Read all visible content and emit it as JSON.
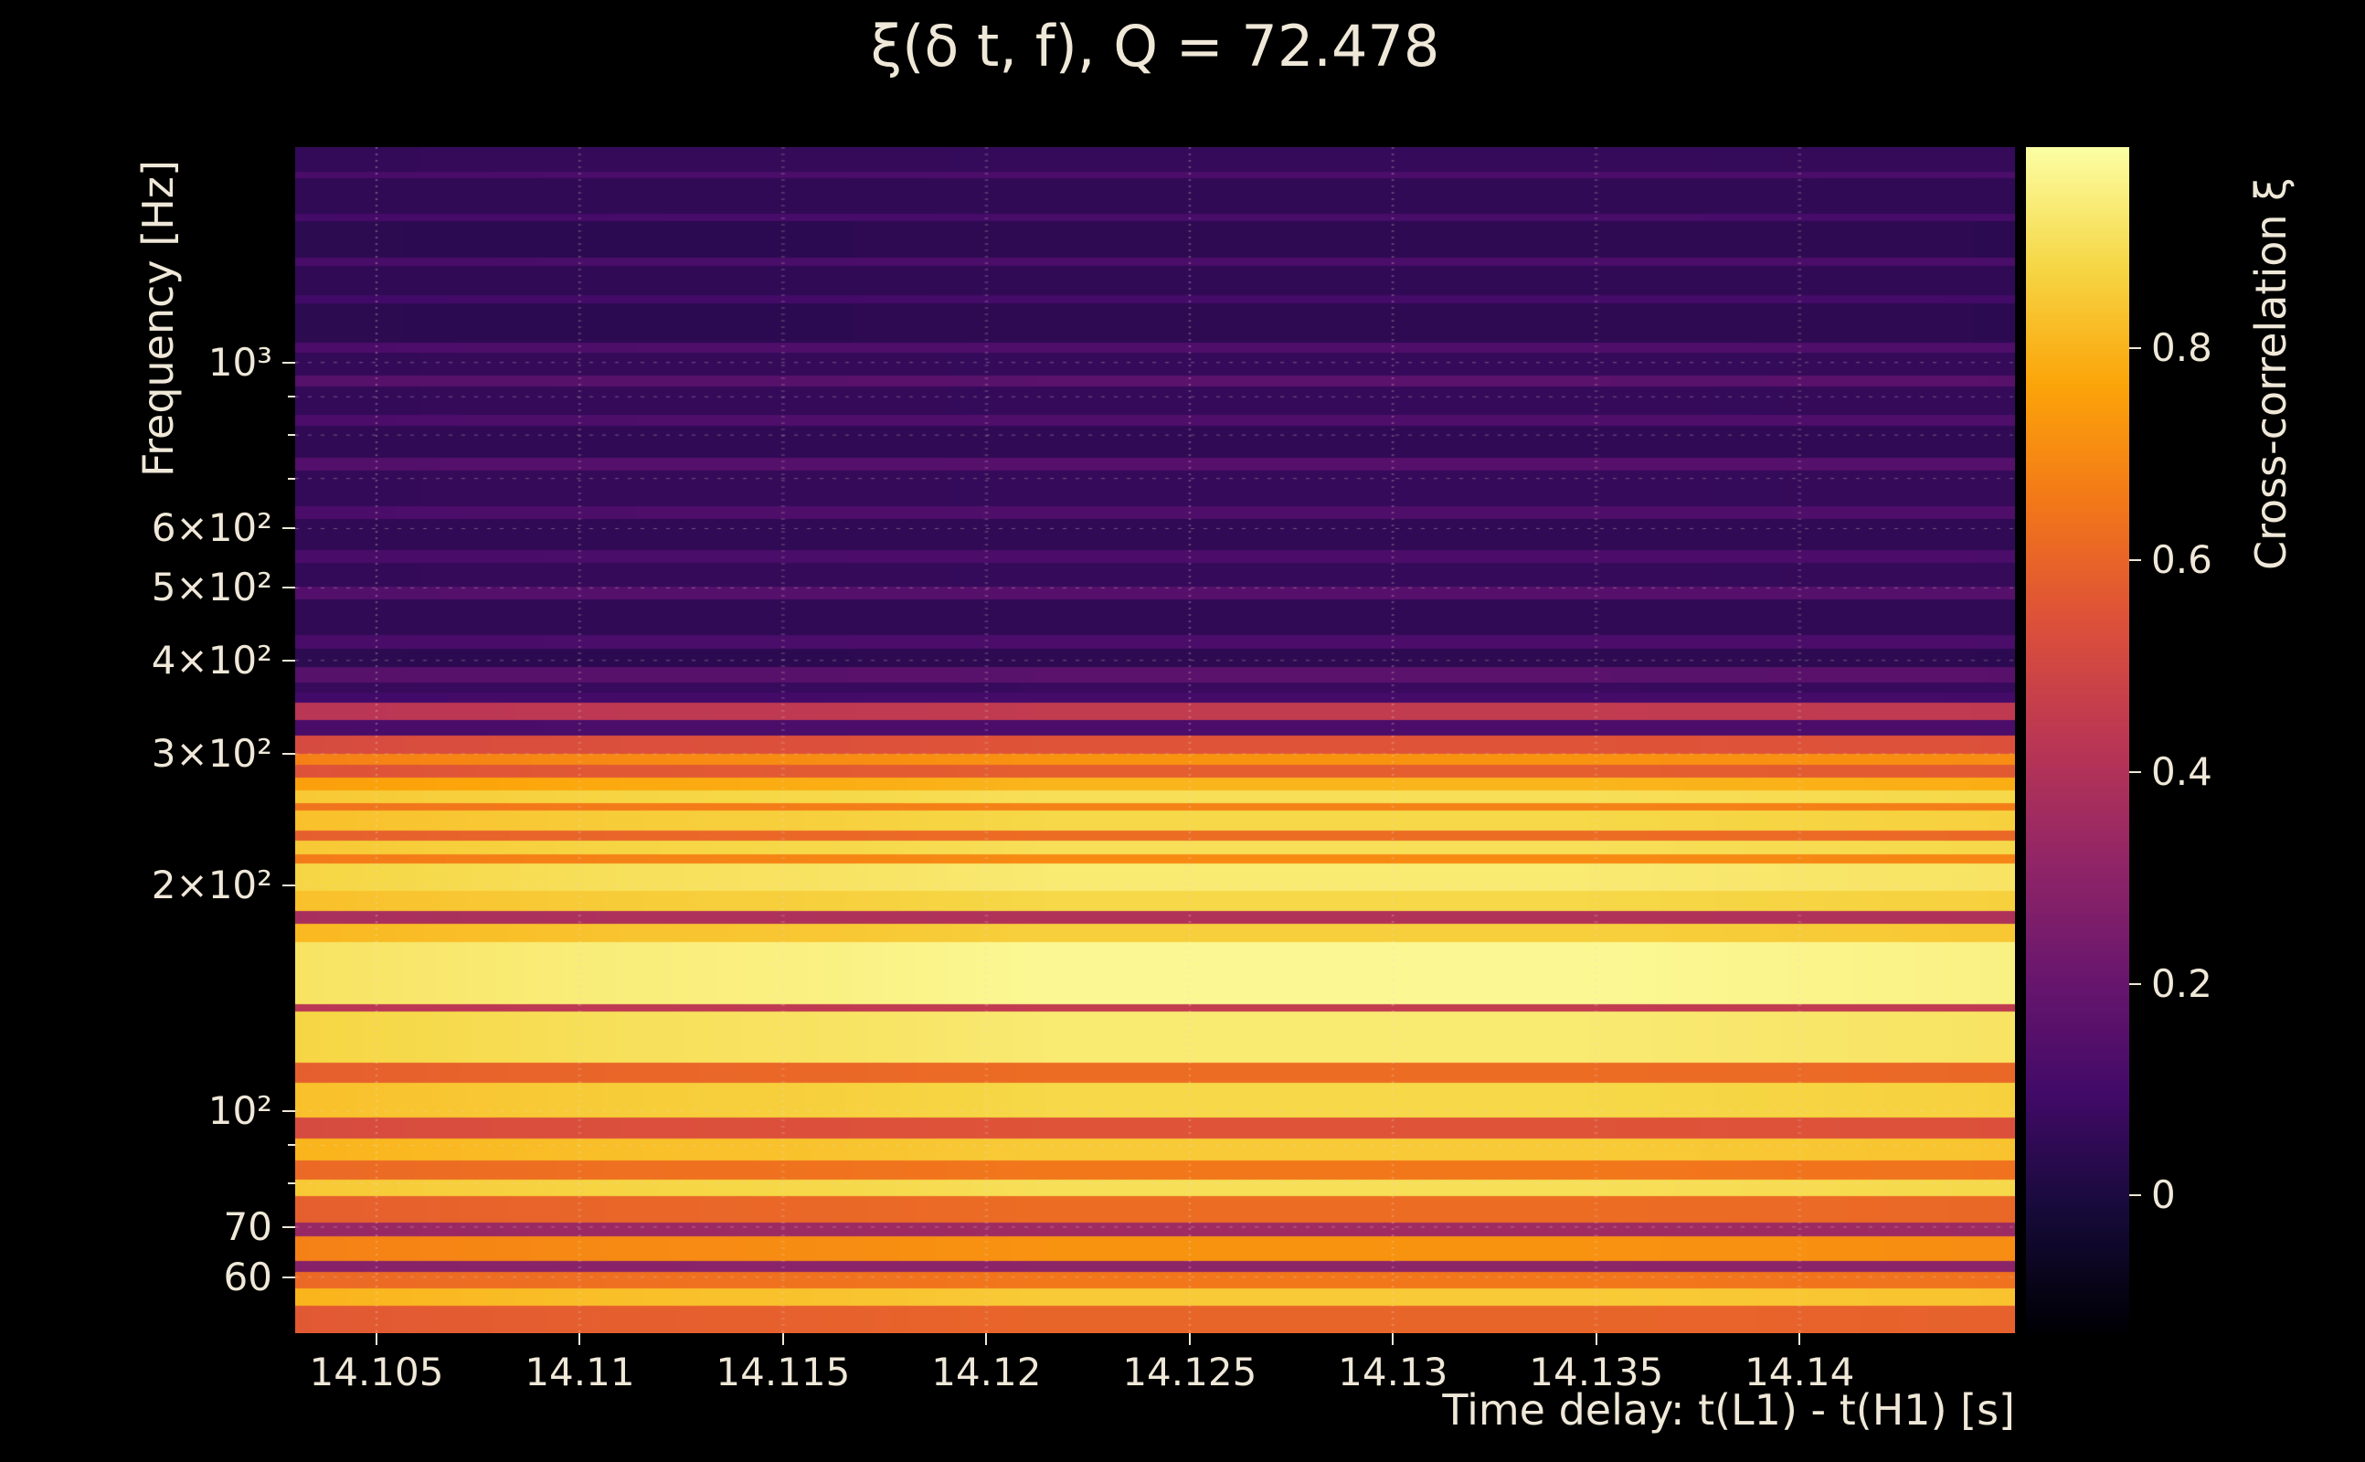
{
  "figure": {
    "background_color": "#000000",
    "text_color": "#efe8d8"
  },
  "chart_data": {
    "type": "heatmap",
    "title": "ξ(δ t, f), Q = 72.478",
    "q": 72.478,
    "xlabel": "Time delay: t(L1) - t(H1) [s]",
    "ylabel": "Frequency [Hz]",
    "colorbar_label": "Cross-correlation ξ",
    "colormap": "inferno",
    "x_range": [
      14.103,
      14.1453
    ],
    "x_ticks": [
      {
        "value": 14.105,
        "label": "14.105"
      },
      {
        "value": 14.11,
        "label": "14.11"
      },
      {
        "value": 14.115,
        "label": "14.115"
      },
      {
        "value": 14.12,
        "label": "14.12"
      },
      {
        "value": 14.125,
        "label": "14.125"
      },
      {
        "value": 14.13,
        "label": "14.13"
      },
      {
        "value": 14.135,
        "label": "14.135"
      },
      {
        "value": 14.14,
        "label": "14.14"
      }
    ],
    "y_scale": "log",
    "y_range_hz": [
      50.5,
      1940
    ],
    "y_ticks": [
      {
        "value": 1000,
        "label": "10³"
      },
      {
        "value": 900,
        "label": ""
      },
      {
        "value": 800,
        "label": ""
      },
      {
        "value": 700,
        "label": ""
      },
      {
        "value": 600,
        "label": "6×10²"
      },
      {
        "value": 500,
        "label": "5×10²"
      },
      {
        "value": 400,
        "label": "4×10²"
      },
      {
        "value": 300,
        "label": "3×10²"
      },
      {
        "value": 200,
        "label": "2×10²"
      },
      {
        "value": 100,
        "label": "10²"
      },
      {
        "value": 90,
        "label": ""
      },
      {
        "value": 80,
        "label": ""
      },
      {
        "value": 70,
        "label": "70"
      },
      {
        "value": 60,
        "label": "60"
      }
    ],
    "colorbar_range": [
      -0.13,
      0.99
    ],
    "colorbar_ticks": [
      {
        "value": 0.8,
        "label": "0.8"
      },
      {
        "value": 0.6,
        "label": "0.6"
      },
      {
        "value": 0.4,
        "label": "0.4"
      },
      {
        "value": 0.2,
        "label": "0.2"
      },
      {
        "value": 0.0,
        "label": "0"
      }
    ],
    "grid": {
      "show": true,
      "style": "dotted",
      "color": "#e8e0d0",
      "alpha": 0.38
    },
    "grid_freqs_hz": [
      1000,
      900,
      800,
      700,
      600,
      500,
      400,
      300,
      200,
      100,
      90,
      80,
      70,
      60
    ],
    "bands_hz_xi": [
      [
        1940,
        1800,
        0.06
      ],
      [
        1800,
        1762,
        0.12
      ],
      [
        1762,
        1580,
        0.05
      ],
      [
        1580,
        1543,
        0.11
      ],
      [
        1543,
        1382,
        0.04
      ],
      [
        1382,
        1348,
        0.12
      ],
      [
        1348,
        1232,
        0.05
      ],
      [
        1232,
        1200,
        0.1
      ],
      [
        1200,
        1062,
        0.04
      ],
      [
        1062,
        1030,
        0.13
      ],
      [
        1030,
        962,
        0.06
      ],
      [
        962,
        928,
        0.16
      ],
      [
        928,
        852,
        0.06
      ],
      [
        852,
        822,
        0.13
      ],
      [
        822,
        745,
        0.05
      ],
      [
        745,
        718,
        0.15
      ],
      [
        718,
        642,
        0.06
      ],
      [
        642,
        618,
        0.13
      ],
      [
        618,
        562,
        0.05
      ],
      [
        562,
        540,
        0.12
      ],
      [
        540,
        502,
        0.06
      ],
      [
        502,
        482,
        0.15
      ],
      [
        482,
        432,
        0.05
      ],
      [
        432,
        415,
        0.12
      ],
      [
        415,
        392,
        0.04
      ],
      [
        392,
        374,
        0.16
      ],
      [
        374,
        362,
        0.07
      ],
      [
        362,
        351,
        0.1
      ],
      [
        351,
        333,
        0.45
      ],
      [
        333,
        317,
        0.12
      ],
      [
        317,
        300,
        0.55
      ],
      [
        300,
        290,
        0.72
      ],
      [
        290,
        279,
        0.58
      ],
      [
        279,
        268,
        0.8
      ],
      [
        268,
        258,
        0.9
      ],
      [
        258,
        252,
        0.68
      ],
      [
        252,
        237,
        0.88
      ],
      [
        237,
        230,
        0.62
      ],
      [
        230,
        220,
        0.9
      ],
      [
        220,
        214,
        0.7
      ],
      [
        214,
        197,
        0.93
      ],
      [
        197,
        185,
        0.88
      ],
      [
        185,
        178,
        0.4
      ],
      [
        178,
        168,
        0.86
      ],
      [
        168,
        139,
        0.97
      ],
      [
        139,
        136,
        0.45
      ],
      [
        136,
        116,
        0.93
      ],
      [
        116,
        109,
        0.62
      ],
      [
        109,
        98,
        0.88
      ],
      [
        98,
        92,
        0.55
      ],
      [
        92,
        86,
        0.85
      ],
      [
        86,
        81,
        0.65
      ],
      [
        81,
        77,
        0.9
      ],
      [
        77,
        71,
        0.62
      ],
      [
        71,
        68,
        0.35
      ],
      [
        68,
        63,
        0.72
      ],
      [
        63,
        61,
        0.3
      ],
      [
        61,
        58,
        0.65
      ],
      [
        58,
        55,
        0.85
      ],
      [
        55,
        50,
        0.6
      ]
    ],
    "x_intensity_profile": [
      0.94,
      0.95,
      0.96,
      0.97,
      0.975,
      0.98,
      0.99,
      1.0,
      1.0,
      1.0,
      1.0,
      1.0,
      1.0,
      0.995,
      0.99,
      0.985,
      0.98
    ]
  }
}
